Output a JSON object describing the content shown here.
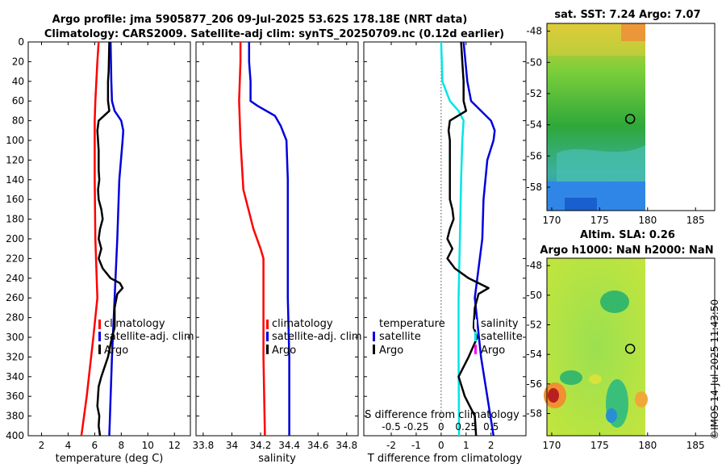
{
  "header": {
    "title_line1": "Argo profile: jma 5905877_206 09-Jul-2025 53.62S 178.18E (NRT data)",
    "title_line2": "Climatology: CARS2009. Satellite-adj clim: synTS_20250709.nc (0.12d earlier)"
  },
  "depth_ticks": [
    "0",
    "20",
    "40",
    "60",
    "80",
    "100",
    "120",
    "140",
    "160",
    "180",
    "200",
    "220",
    "240",
    "260",
    "280",
    "300",
    "320",
    "340",
    "360",
    "380",
    "400"
  ],
  "colors": {
    "climatology": "#ff0000",
    "satellite": "#0000dd",
    "argo": "#000000",
    "cyan": "#00e5e5",
    "magenta": "#ff00ff"
  },
  "chart_data": [
    {
      "type": "line",
      "title": "",
      "xlabel": "temperature (deg C)",
      "ylabel": "",
      "xlim": [
        1,
        13.2
      ],
      "ylim": [
        400,
        0
      ],
      "xticks": [
        2,
        4,
        6,
        8,
        10,
        12
      ],
      "xtick_labels": [
        "2",
        "4",
        "6",
        "8",
        "10",
        "12"
      ],
      "legend": [
        "climatology",
        "satellite-adj. clim",
        "Argo"
      ],
      "series": [
        {
          "name": "climatology",
          "color": "#ff0000",
          "depth": [
            0,
            20,
            60,
            80,
            140,
            200,
            260,
            300,
            360,
            400
          ],
          "values": [
            6.3,
            6.2,
            6.05,
            6.0,
            6.0,
            6.05,
            6.2,
            5.9,
            5.4,
            5.0
          ]
        },
        {
          "name": "satellite-adj. clim",
          "color": "#0000dd",
          "depth": [
            0,
            40,
            60,
            70,
            80,
            90,
            100,
            140,
            200,
            260,
            320,
            400
          ],
          "values": [
            7.2,
            7.25,
            7.3,
            7.5,
            8.0,
            8.15,
            8.1,
            7.85,
            7.7,
            7.5,
            7.3,
            7.1
          ]
        },
        {
          "name": "Argo",
          "color": "#000000",
          "depth": [
            0,
            30,
            40,
            60,
            70,
            80,
            90,
            100,
            110,
            120,
            130,
            140,
            150,
            160,
            170,
            180,
            190,
            200,
            210,
            220,
            230,
            240,
            245,
            250,
            256,
            270,
            290,
            300,
            320,
            340,
            350,
            360,
            370,
            380,
            390,
            400
          ],
          "values": [
            7.1,
            7.05,
            7.0,
            7.0,
            7.1,
            6.3,
            6.2,
            6.25,
            6.3,
            6.3,
            6.3,
            6.35,
            6.25,
            6.3,
            6.5,
            6.6,
            6.4,
            6.3,
            6.5,
            6.3,
            6.6,
            7.2,
            7.9,
            8.1,
            7.7,
            7.5,
            7.5,
            7.3,
            7.0,
            6.5,
            6.3,
            6.25,
            6.2,
            6.35,
            6.3,
            6.4
          ]
        }
      ]
    },
    {
      "type": "line",
      "xlabel": "salinity",
      "xlim": [
        33.75,
        34.88
      ],
      "ylim": [
        400,
        0
      ],
      "xticks": [
        33.8,
        34,
        34.2,
        34.4,
        34.6,
        34.8
      ],
      "xtick_labels": [
        "33.8",
        "34",
        "34.2",
        "34.4",
        "34.6",
        "34.8"
      ],
      "legend": [
        "climatology",
        "satellite-adj. clim",
        "Argo"
      ],
      "series": [
        {
          "name": "climatology",
          "color": "#ff0000",
          "depth": [
            0,
            20,
            60,
            100,
            150,
            190,
            210,
            220,
            260,
            320,
            400
          ],
          "values": [
            34.06,
            34.06,
            34.05,
            34.06,
            34.08,
            34.15,
            34.2,
            34.22,
            34.22,
            34.22,
            34.23
          ]
        },
        {
          "name": "satellite-adj. clim",
          "color": "#0000dd",
          "depth": [
            0,
            20,
            40,
            60,
            65,
            75,
            85,
            100,
            140,
            200,
            260,
            320,
            400
          ],
          "values": [
            34.12,
            34.12,
            34.13,
            34.13,
            34.18,
            34.3,
            34.34,
            34.38,
            34.39,
            34.39,
            34.39,
            34.4,
            34.4
          ]
        }
      ]
    },
    {
      "type": "line",
      "xlabel": "T difference from climatology",
      "top_axis_label": "S difference from climatology",
      "xlim": [
        -3.1,
        3.4
      ],
      "ylim": [
        400,
        0
      ],
      "xticks": [
        -2,
        -1,
        0,
        1,
        2
      ],
      "xtick_labels": [
        "-2",
        "-1",
        "0",
        "1",
        "2"
      ],
      "top_ticks": [
        -0.5,
        -0.25,
        0,
        0.25,
        0.5
      ],
      "top_tick_labels": [
        "-0.5",
        "-0.25",
        "0",
        "0.25",
        "0.5"
      ],
      "legend_left": [
        "temperature",
        "satellite",
        "Argo"
      ],
      "legend_right": [
        "salinity",
        "satellite",
        "Argo"
      ],
      "series": [
        {
          "name": "satellite T diff",
          "color": "#0000dd",
          "depth": [
            0,
            40,
            60,
            70,
            80,
            90,
            100,
            120,
            160,
            200,
            260,
            320,
            400
          ],
          "values": [
            0.9,
            1.05,
            1.2,
            1.6,
            2.0,
            2.15,
            2.1,
            1.85,
            1.7,
            1.65,
            1.35,
            1.6,
            2.1
          ]
        },
        {
          "name": "satellite S diff",
          "color": "#00e5e5",
          "depth": [
            0,
            40,
            60,
            70,
            80,
            100,
            140,
            200,
            260,
            320,
            400
          ],
          "values": [
            0.0,
            0.05,
            0.35,
            0.7,
            0.9,
            0.85,
            0.8,
            0.75,
            0.7,
            0.7,
            0.72
          ]
        },
        {
          "name": "Argo T diff",
          "color": "#000000",
          "depth": [
            0,
            20,
            40,
            60,
            70,
            80,
            90,
            100,
            120,
            140,
            160,
            170,
            180,
            190,
            200,
            210,
            220,
            230,
            240,
            250,
            256,
            270,
            290,
            300,
            320,
            340,
            360,
            380,
            400
          ],
          "values": [
            0.8,
            0.85,
            0.9,
            0.9,
            1.0,
            0.35,
            0.3,
            0.35,
            0.35,
            0.35,
            0.35,
            0.45,
            0.5,
            0.35,
            0.25,
            0.45,
            0.25,
            0.55,
            1.1,
            1.9,
            1.5,
            1.35,
            1.3,
            1.45,
            1.1,
            0.7,
            0.95,
            1.35,
            1.4
          ]
        }
      ]
    },
    {
      "type": "heatmap",
      "title": "sat. SST: 7.24 Argo: 7.07",
      "xlim": [
        169.5,
        187
      ],
      "ylim": [
        -59.5,
        -47.5
      ],
      "xticks": [
        170,
        175,
        180,
        185
      ],
      "xtick_labels": [
        "170",
        "175",
        "180",
        "185"
      ],
      "yticks": [
        -48,
        -50,
        -52,
        -54,
        -56,
        -58
      ],
      "ytick_labels": [
        "-48",
        "-50",
        "-52",
        "-54",
        "-56",
        "-58"
      ],
      "marker": {
        "lon": 178.18,
        "lat": -53.62
      }
    },
    {
      "type": "heatmap",
      "title_line1": "Altim. SLA: 0.26",
      "title_line2": "Argo h1000: NaN h2000: NaN",
      "xlim": [
        169.5,
        187
      ],
      "ylim": [
        -59.5,
        -47.5
      ],
      "xticks": [
        170,
        175,
        180,
        185
      ],
      "xtick_labels": [
        "170",
        "175",
        "180",
        "185"
      ],
      "yticks": [
        -48,
        -50,
        -52,
        -54,
        -56,
        -58
      ],
      "ytick_labels": [
        "-48",
        "-50",
        "-52",
        "-54",
        "-56",
        "-58"
      ],
      "marker": {
        "lon": 178.18,
        "lat": -53.62
      }
    }
  ],
  "watermark": "©IMOS 14-Jul-2025 11:43:50"
}
